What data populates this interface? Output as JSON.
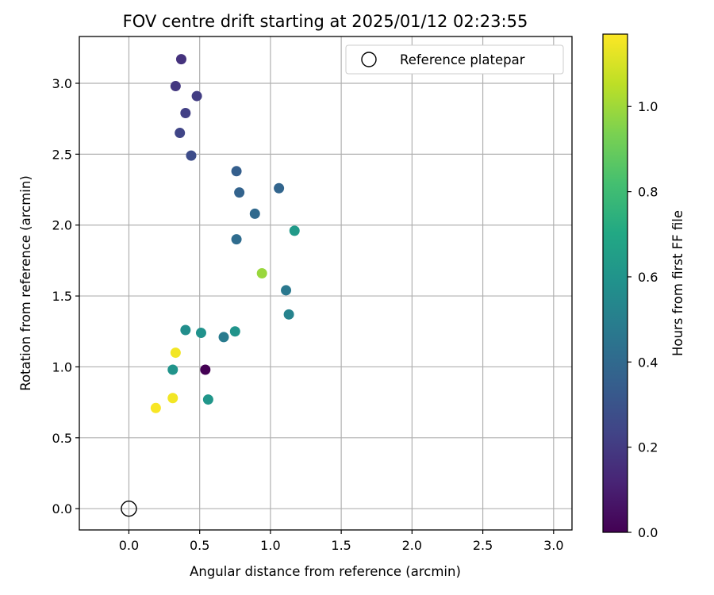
{
  "chart_data": {
    "type": "scatter",
    "title": "FOV centre drift starting at 2025/01/12 02:23:55",
    "xlabel": "Angular distance from reference (arcmin)",
    "ylabel": "Rotation from reference (arcmin)",
    "xlim": [
      -0.35,
      3.13
    ],
    "ylim": [
      -0.15,
      3.33
    ],
    "xticks": [
      "0.0",
      "0.5",
      "1.0",
      "1.5",
      "2.0",
      "2.5",
      "3.0"
    ],
    "yticks": [
      "0.0",
      "0.5",
      "1.0",
      "1.5",
      "2.0",
      "2.5",
      "3.0"
    ],
    "grid": true,
    "legend": {
      "placement": "top-right",
      "entries": [
        "Reference platepar"
      ]
    },
    "colorbar": {
      "label": "Hours from first FF file",
      "range": [
        0.0,
        1.17
      ],
      "ticks": [
        "0.0",
        "0.2",
        "0.4",
        "0.6",
        "0.8",
        "1.0"
      ],
      "colormap": "viridis"
    },
    "reference_point": {
      "name": "Reference platepar",
      "x": 0.0,
      "y": 0.0
    },
    "points": [
      {
        "x": 0.54,
        "y": 0.98,
        "c": 0.0
      },
      {
        "x": 0.37,
        "y": 3.17,
        "c": 0.17
      },
      {
        "x": 0.33,
        "y": 2.98,
        "c": 0.19
      },
      {
        "x": 0.48,
        "y": 2.91,
        "c": 0.21
      },
      {
        "x": 0.4,
        "y": 2.79,
        "c": 0.22
      },
      {
        "x": 0.36,
        "y": 2.65,
        "c": 0.24
      },
      {
        "x": 0.44,
        "y": 2.49,
        "c": 0.27
      },
      {
        "x": 0.76,
        "y": 2.38,
        "c": 0.35
      },
      {
        "x": 0.78,
        "y": 2.23,
        "c": 0.37
      },
      {
        "x": 1.06,
        "y": 2.26,
        "c": 0.38
      },
      {
        "x": 0.89,
        "y": 2.08,
        "c": 0.4
      },
      {
        "x": 0.76,
        "y": 1.9,
        "c": 0.41
      },
      {
        "x": 1.11,
        "y": 1.54,
        "c": 0.47
      },
      {
        "x": 0.67,
        "y": 1.21,
        "c": 0.48
      },
      {
        "x": 1.13,
        "y": 1.37,
        "c": 0.52
      },
      {
        "x": 0.4,
        "y": 1.26,
        "c": 0.57
      },
      {
        "x": 0.51,
        "y": 1.24,
        "c": 0.59
      },
      {
        "x": 0.75,
        "y": 1.25,
        "c": 0.6
      },
      {
        "x": 0.31,
        "y": 0.98,
        "c": 0.6
      },
      {
        "x": 0.56,
        "y": 0.77,
        "c": 0.61
      },
      {
        "x": 1.17,
        "y": 1.96,
        "c": 0.63
      },
      {
        "x": 0.94,
        "y": 1.66,
        "c": 0.99
      },
      {
        "x": 0.33,
        "y": 1.1,
        "c": 1.15
      },
      {
        "x": 0.31,
        "y": 0.78,
        "c": 1.15
      },
      {
        "x": 0.19,
        "y": 0.71,
        "c": 1.16
      }
    ]
  }
}
